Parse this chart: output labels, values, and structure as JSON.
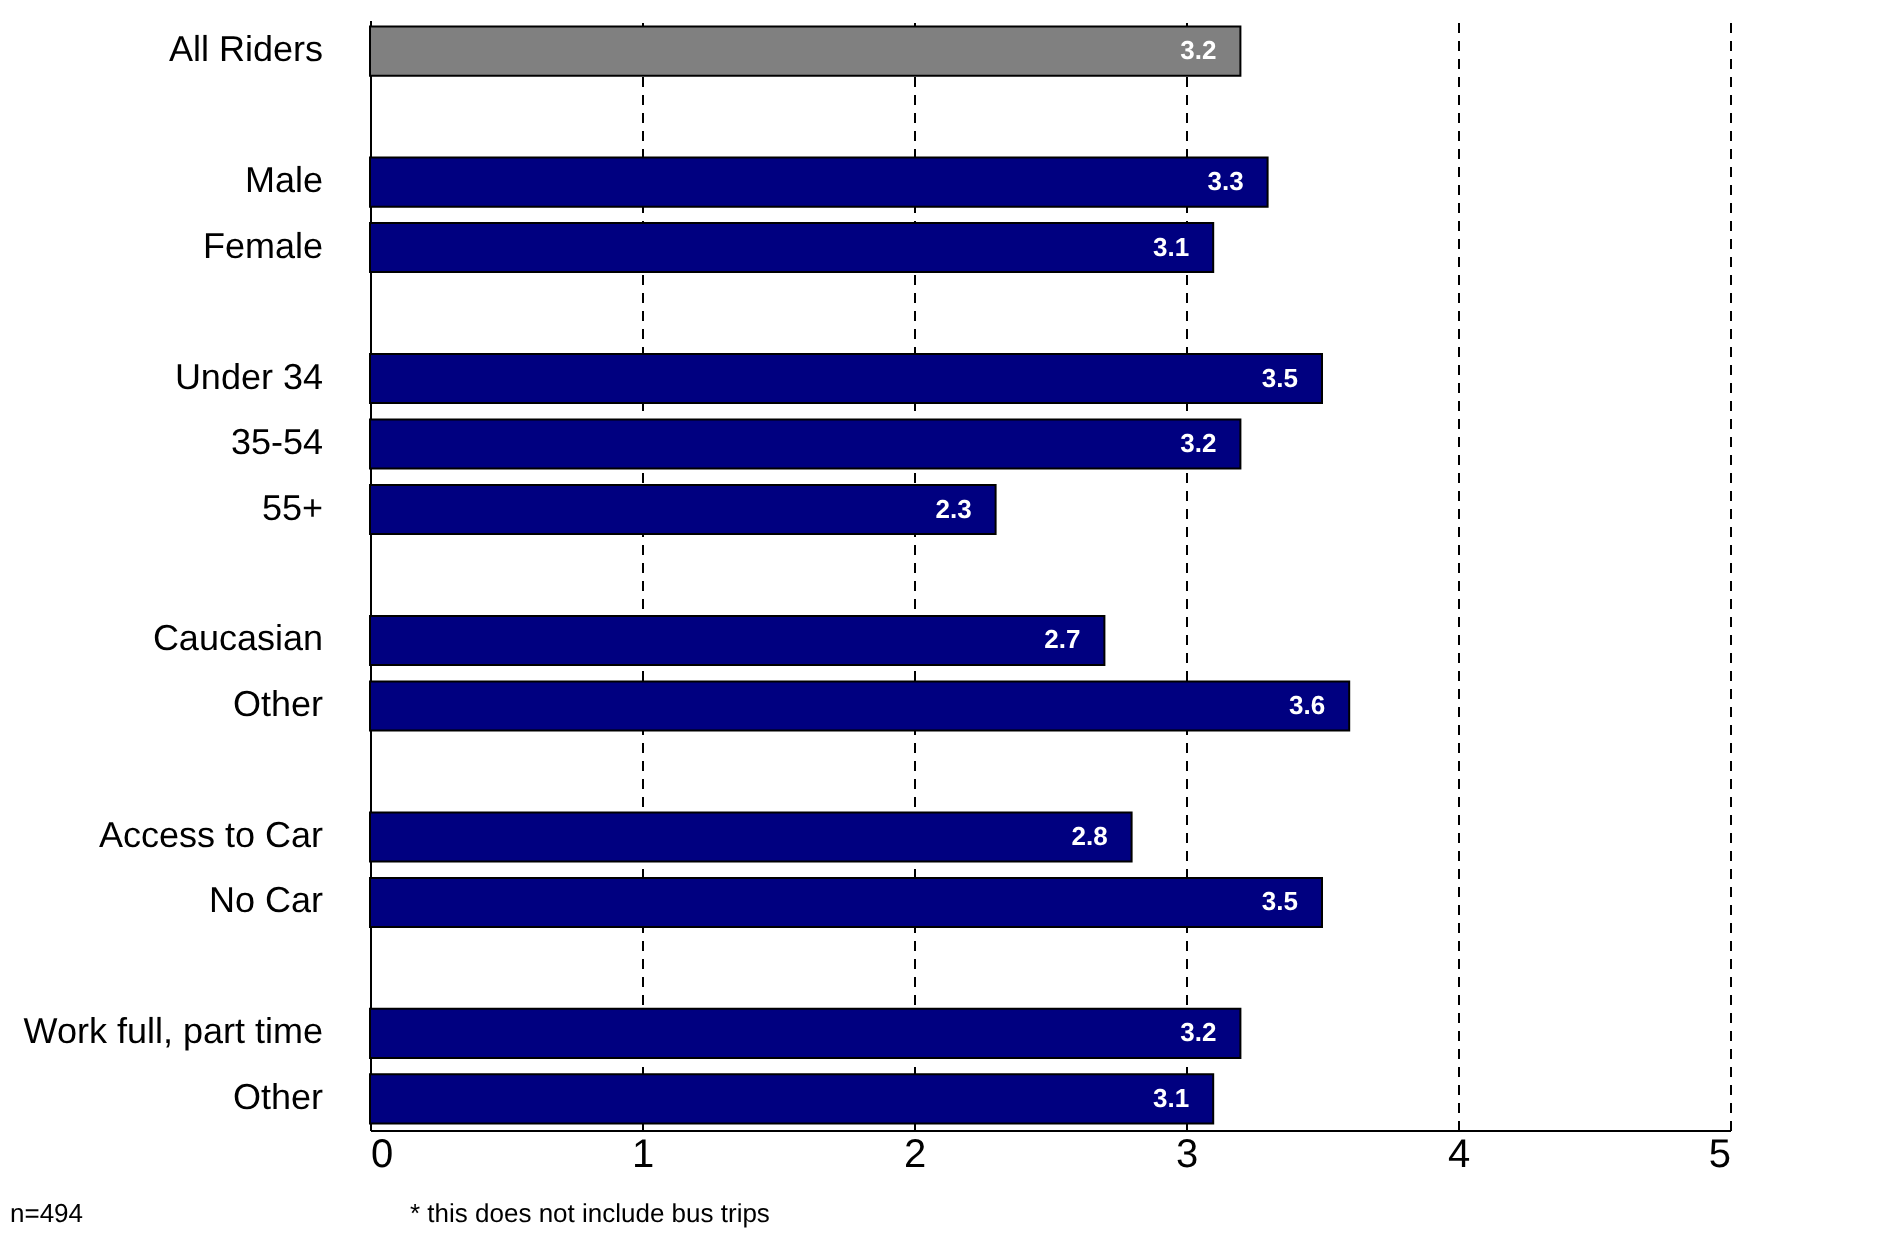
{
  "chart_data": {
    "type": "bar",
    "orientation": "horizontal",
    "categories": [
      "All Riders",
      null,
      "Male",
      "Female",
      null,
      "Under 34",
      "35-54",
      "55+",
      null,
      "Caucasian",
      "Other",
      null,
      "Access to Car",
      "No Car",
      null,
      "Work full, part time",
      "Other"
    ],
    "values": [
      3.2,
      null,
      3.3,
      3.1,
      null,
      3.5,
      3.2,
      2.3,
      null,
      2.7,
      3.6,
      null,
      2.8,
      3.5,
      null,
      3.2,
      3.1
    ],
    "colors": [
      "#808080",
      null,
      "#000080",
      "#000080",
      null,
      "#000080",
      "#000080",
      "#000080",
      null,
      "#000080",
      "#000080",
      null,
      "#000080",
      "#000080",
      null,
      "#000080",
      "#000080"
    ],
    "data_labels": true,
    "xlim": [
      0,
      5
    ],
    "xticks": [
      0,
      1,
      2,
      3,
      4,
      5
    ],
    "grid": "x",
    "line_style": "dashed",
    "annotations": [
      "n=494",
      "* this does not include bus trips"
    ]
  }
}
